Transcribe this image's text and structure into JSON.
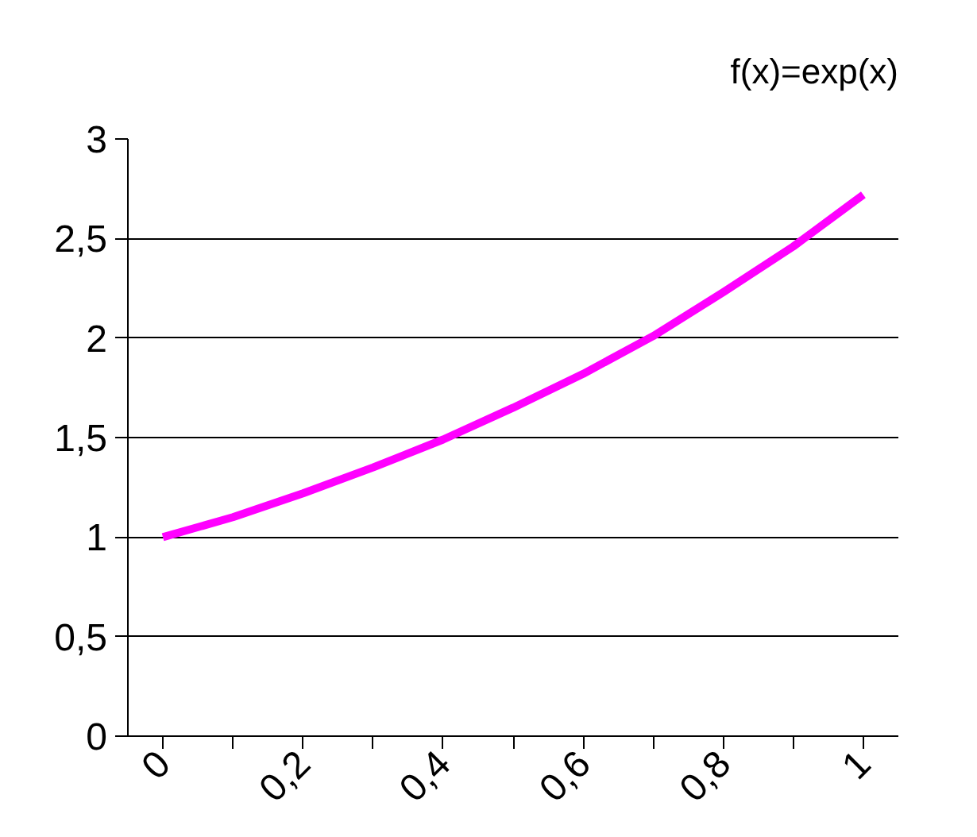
{
  "chart_data": {
    "type": "line",
    "title": "f(x)=exp(x)",
    "categories": [
      "0",
      null,
      "0,2",
      null,
      "0,4",
      null,
      "0,6",
      null,
      "0,8",
      null,
      "1"
    ],
    "series": [
      {
        "color": "#ff00ff",
        "values": [
          1.0,
          1.1,
          1.22,
          1.35,
          1.49,
          1.65,
          1.82,
          2.01,
          2.23,
          2.46,
          2.72
        ]
      }
    ],
    "ylim": [
      0,
      3
    ],
    "yticks": [
      0,
      {
        "value": 0.5,
        "label": "0,5"
      },
      1,
      {
        "value": 1.5,
        "label": "1,5"
      },
      2,
      {
        "value": 2.5,
        "label": "2,5"
      },
      3
    ],
    "grid": "y",
    "marker": "none",
    "line_style": "solid"
  }
}
